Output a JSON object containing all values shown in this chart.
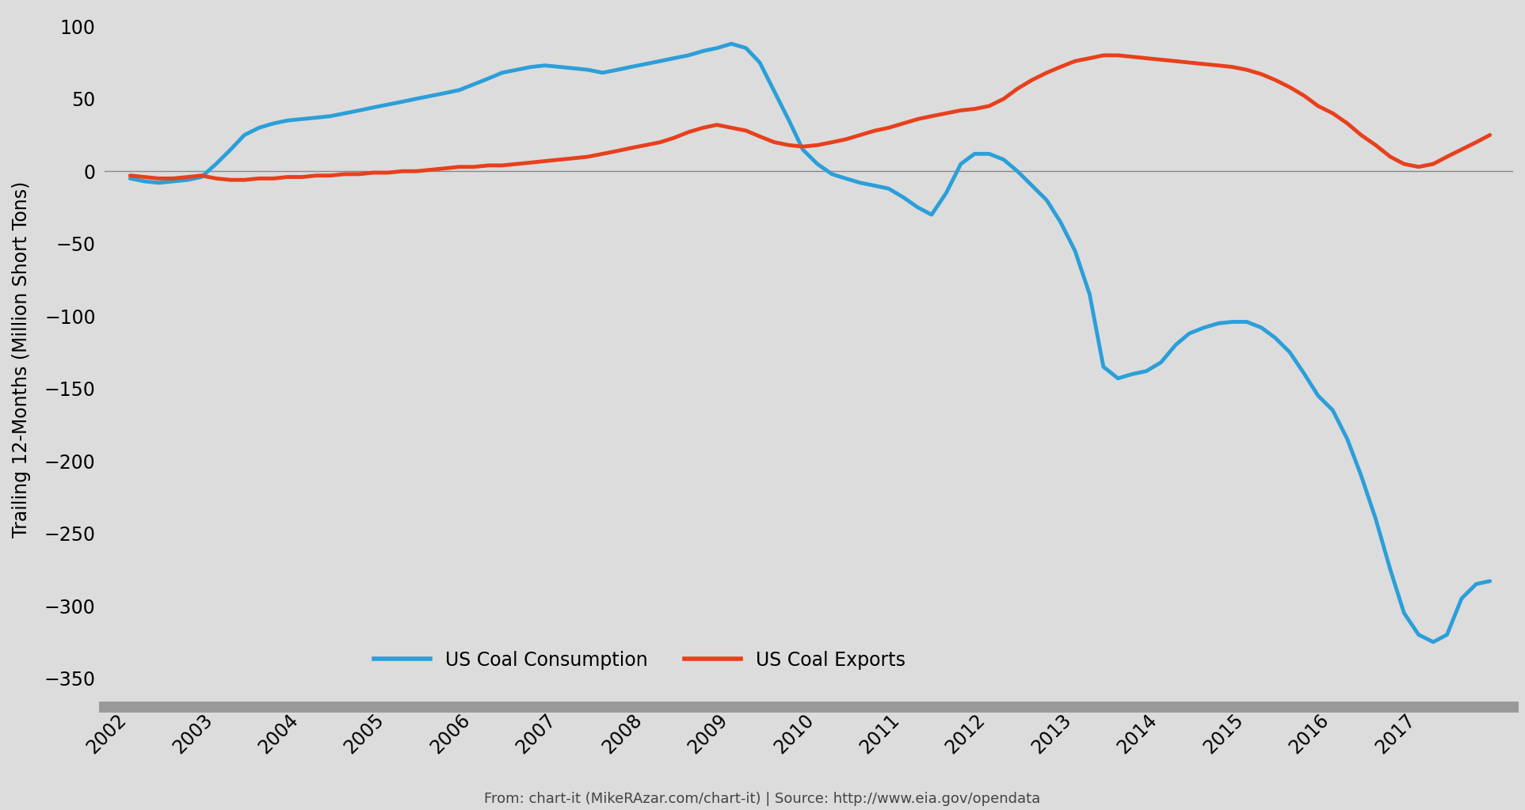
{
  "ylabel": "Trailing 12-Months (Million Short Tons)",
  "source_text": "From: chart-it (MikeRAzar.com/chart-it) | Source: http://www.eia.gov/opendata",
  "background_color": "#dcdcdc",
  "ylim": [
    -370,
    110
  ],
  "yticks": [
    100,
    50,
    0,
    -50,
    -100,
    -150,
    -200,
    -250,
    -300,
    -350
  ],
  "xlim_min": 2001.7,
  "xlim_max": 2018.1,
  "line_width": 3.5,
  "consumption_color": "#2b9fd9",
  "exports_color": "#e8401c",
  "zero_line_color": "#888888",
  "bottom_line_color": "#999999",
  "consumption_label": "US Coal Consumption",
  "exports_label": "US Coal Exports",
  "consumption_x": [
    2002.0,
    2002.17,
    2002.33,
    2002.5,
    2002.67,
    2002.83,
    2003.0,
    2003.17,
    2003.33,
    2003.5,
    2003.67,
    2003.83,
    2004.0,
    2004.17,
    2004.33,
    2004.5,
    2004.67,
    2004.83,
    2005.0,
    2005.17,
    2005.33,
    2005.5,
    2005.67,
    2005.83,
    2006.0,
    2006.17,
    2006.33,
    2006.5,
    2006.67,
    2006.83,
    2007.0,
    2007.17,
    2007.33,
    2007.5,
    2007.67,
    2007.83,
    2008.0,
    2008.17,
    2008.33,
    2008.5,
    2008.67,
    2008.83,
    2009.0,
    2009.17,
    2009.33,
    2009.5,
    2009.67,
    2009.83,
    2010.0,
    2010.17,
    2010.33,
    2010.5,
    2010.67,
    2010.83,
    2011.0,
    2011.17,
    2011.33,
    2011.5,
    2011.67,
    2011.83,
    2012.0,
    2012.17,
    2012.33,
    2012.5,
    2012.67,
    2012.83,
    2013.0,
    2013.17,
    2013.33,
    2013.5,
    2013.67,
    2013.83,
    2014.0,
    2014.17,
    2014.33,
    2014.5,
    2014.67,
    2014.83,
    2015.0,
    2015.17,
    2015.33,
    2015.5,
    2015.67,
    2015.83,
    2016.0,
    2016.17,
    2016.33,
    2016.5,
    2016.67,
    2016.83,
    2017.0,
    2017.17,
    2017.33,
    2017.5,
    2017.67,
    2017.83
  ],
  "consumption_y": [
    -5,
    -7,
    -8,
    -7,
    -6,
    -4,
    5,
    15,
    25,
    30,
    33,
    35,
    36,
    37,
    38,
    40,
    42,
    44,
    46,
    48,
    50,
    52,
    54,
    56,
    60,
    64,
    68,
    70,
    72,
    73,
    72,
    71,
    70,
    68,
    70,
    72,
    74,
    76,
    78,
    80,
    83,
    85,
    88,
    85,
    75,
    55,
    35,
    15,
    5,
    -2,
    -5,
    -8,
    -10,
    -12,
    -18,
    -25,
    -30,
    -15,
    5,
    12,
    12,
    8,
    0,
    -10,
    -20,
    -35,
    -55,
    -85,
    -135,
    -143,
    -140,
    -138,
    -132,
    -120,
    -112,
    -108,
    -105,
    -104,
    -104,
    -108,
    -115,
    -125,
    -140,
    -155,
    -165,
    -185,
    -210,
    -240,
    -275,
    -305,
    -320,
    -325,
    -320,
    -295,
    -285,
    -283
  ],
  "exports_x": [
    2002.0,
    2002.17,
    2002.33,
    2002.5,
    2002.67,
    2002.83,
    2003.0,
    2003.17,
    2003.33,
    2003.5,
    2003.67,
    2003.83,
    2004.0,
    2004.17,
    2004.33,
    2004.5,
    2004.67,
    2004.83,
    2005.0,
    2005.17,
    2005.33,
    2005.5,
    2005.67,
    2005.83,
    2006.0,
    2006.17,
    2006.33,
    2006.5,
    2006.67,
    2006.83,
    2007.0,
    2007.17,
    2007.33,
    2007.5,
    2007.67,
    2007.83,
    2008.0,
    2008.17,
    2008.33,
    2008.5,
    2008.67,
    2008.83,
    2009.0,
    2009.17,
    2009.33,
    2009.5,
    2009.67,
    2009.83,
    2010.0,
    2010.17,
    2010.33,
    2010.5,
    2010.67,
    2010.83,
    2011.0,
    2011.17,
    2011.33,
    2011.5,
    2011.67,
    2011.83,
    2012.0,
    2012.17,
    2012.33,
    2012.5,
    2012.67,
    2012.83,
    2013.0,
    2013.17,
    2013.33,
    2013.5,
    2013.67,
    2013.83,
    2014.0,
    2014.17,
    2014.33,
    2014.5,
    2014.67,
    2014.83,
    2015.0,
    2015.17,
    2015.33,
    2015.5,
    2015.67,
    2015.83,
    2016.0,
    2016.17,
    2016.33,
    2016.5,
    2016.67,
    2016.83,
    2017.0,
    2017.17,
    2017.33,
    2017.5,
    2017.67,
    2017.83
  ],
  "exports_y": [
    -3,
    -4,
    -5,
    -5,
    -4,
    -3,
    -5,
    -6,
    -6,
    -5,
    -5,
    -4,
    -4,
    -3,
    -3,
    -2,
    -2,
    -1,
    -1,
    0,
    0,
    1,
    2,
    3,
    3,
    4,
    4,
    5,
    6,
    7,
    8,
    9,
    10,
    12,
    14,
    16,
    18,
    20,
    23,
    27,
    30,
    32,
    30,
    28,
    24,
    20,
    18,
    17,
    18,
    20,
    22,
    25,
    28,
    30,
    33,
    36,
    38,
    40,
    42,
    43,
    45,
    50,
    57,
    63,
    68,
    72,
    76,
    78,
    80,
    80,
    79,
    78,
    77,
    76,
    75,
    74,
    73,
    72,
    70,
    67,
    63,
    58,
    52,
    45,
    40,
    33,
    25,
    18,
    10,
    5,
    3,
    5,
    10,
    15,
    20,
    25
  ]
}
